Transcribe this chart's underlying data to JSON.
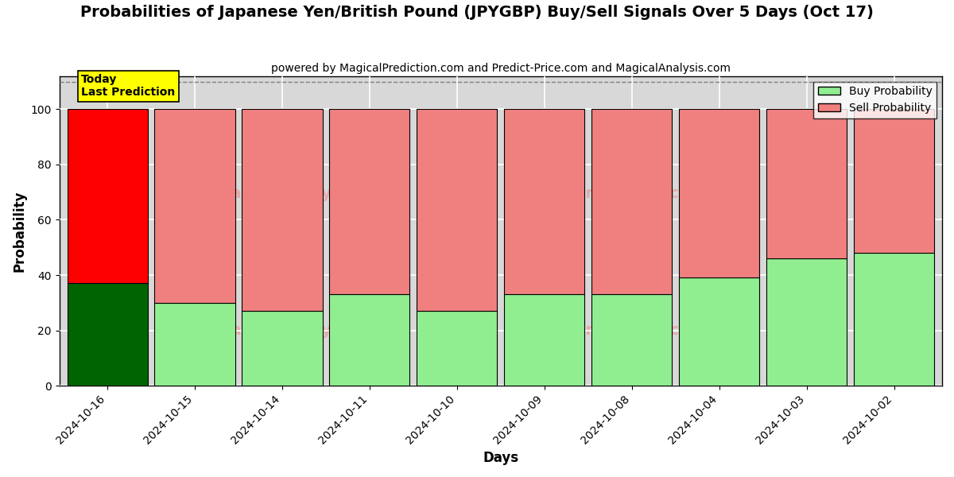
{
  "title": "Probabilities of Japanese Yen/British Pound (JPYGBP) Buy/Sell Signals Over 5 Days (Oct 17)",
  "subtitle": "powered by MagicalPrediction.com and Predict-Price.com and MagicalAnalysis.com",
  "xlabel": "Days",
  "ylabel": "Probability",
  "categories": [
    "2024-10-16",
    "2024-10-15",
    "2024-10-14",
    "2024-10-11",
    "2024-10-10",
    "2024-10-09",
    "2024-10-08",
    "2024-10-04",
    "2024-10-03",
    "2024-10-02"
  ],
  "buy_values": [
    37,
    30,
    27,
    33,
    27,
    33,
    33,
    39,
    46,
    48
  ],
  "sell_values": [
    63,
    70,
    73,
    67,
    73,
    67,
    67,
    61,
    54,
    52
  ],
  "today_index": 0,
  "today_buy_color": "#006400",
  "today_sell_color": "#ff0000",
  "normal_buy_color": "#90EE90",
  "normal_sell_color": "#F08080",
  "bar_edge_color": "#000000",
  "today_label_bg": "#ffff00",
  "today_label_text": "Today\nLast Prediction",
  "legend_buy_label": "Buy Probability",
  "legend_sell_label": "Sell Probability",
  "ylim": [
    0,
    112
  ],
  "dashed_line_y": 110,
  "grid_color": "#ffffff",
  "bg_color": "#d8d8d8",
  "bar_width": 0.92
}
